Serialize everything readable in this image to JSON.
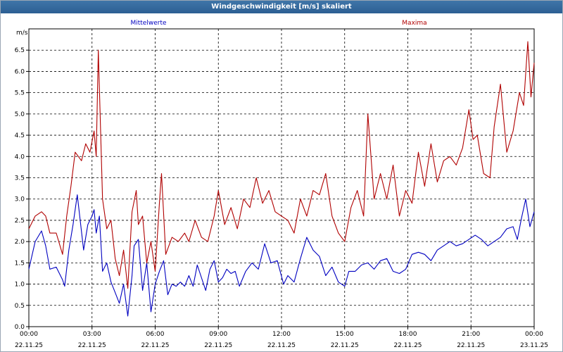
{
  "window": {
    "title": "Windgeschwindigkeit [m/s] skaliert"
  },
  "chart_data": {
    "type": "line",
    "title": "Windgeschwindigkeit [m/s] skaliert",
    "ylabel": "m/s",
    "ylim": [
      0,
      7
    ],
    "yticks": [
      0.0,
      0.5,
      1.0,
      1.5,
      2.0,
      2.5,
      3.0,
      3.5,
      4.0,
      4.5,
      5.0,
      5.5,
      6.0,
      6.5
    ],
    "ytick_labels": [
      "0.0",
      "0.5",
      "1.0",
      "1.5",
      "2.0",
      "2.5",
      "3.0",
      "3.5",
      "4.0",
      "4.5",
      "5.0",
      "5.5",
      "6.0",
      "6.5"
    ],
    "xlim_hours": [
      0,
      24
    ],
    "xticks_hours": [
      0,
      3,
      6,
      9,
      12,
      15,
      18,
      21,
      24
    ],
    "xtick_times": [
      "00:00",
      "03:00",
      "06:00",
      "09:00",
      "12:00",
      "15:00",
      "18:00",
      "21:00",
      "00:00"
    ],
    "xtick_dates": [
      "22.11.25",
      "22.11.25",
      "22.11.25",
      "22.11.25",
      "22.11.25",
      "22.11.25",
      "22.11.25",
      "22.11.25",
      "23.11.25"
    ],
    "grid": true,
    "series": [
      {
        "name": "Mittelwerte",
        "color": "#0000c0",
        "x_hours": [
          0.0,
          0.3,
          0.6,
          0.8,
          1.0,
          1.3,
          1.6,
          1.7,
          1.9,
          2.1,
          2.3,
          2.6,
          2.8,
          3.0,
          3.1,
          3.2,
          3.35,
          3.5,
          3.7,
          3.9,
          4.1,
          4.3,
          4.5,
          4.7,
          4.9,
          5.0,
          5.2,
          5.4,
          5.6,
          5.8,
          6.0,
          6.2,
          6.4,
          6.6,
          6.8,
          7.0,
          7.2,
          7.4,
          7.6,
          7.8,
          8.0,
          8.2,
          8.4,
          8.6,
          8.8,
          9.0,
          9.2,
          9.4,
          9.6,
          9.8,
          10.0,
          10.3,
          10.6,
          10.9,
          11.2,
          11.5,
          11.8,
          12.1,
          12.3,
          12.6,
          12.9,
          13.2,
          13.5,
          13.8,
          14.1,
          14.4,
          14.7,
          15.0,
          15.2,
          15.5,
          15.8,
          16.1,
          16.4,
          16.7,
          17.0,
          17.3,
          17.6,
          17.9,
          18.2,
          18.5,
          18.8,
          19.1,
          19.4,
          19.7,
          20.0,
          20.3,
          20.6,
          20.9,
          21.2,
          21.5,
          21.8,
          22.1,
          22.4,
          22.7,
          23.0,
          23.2,
          23.4,
          23.6,
          23.8,
          24.0
        ],
        "values": [
          1.35,
          2.0,
          2.25,
          1.9,
          1.35,
          1.4,
          1.1,
          0.95,
          1.8,
          2.4,
          3.1,
          1.8,
          2.4,
          2.6,
          2.75,
          2.2,
          2.6,
          1.3,
          1.5,
          1.05,
          0.8,
          0.55,
          1.0,
          0.25,
          1.2,
          1.9,
          2.05,
          0.85,
          1.5,
          0.35,
          1.0,
          1.3,
          1.55,
          0.75,
          1.0,
          0.95,
          1.05,
          0.95,
          1.2,
          0.95,
          1.45,
          1.15,
          0.85,
          1.35,
          1.55,
          1.05,
          1.15,
          1.35,
          1.25,
          1.3,
          0.95,
          1.3,
          1.5,
          1.35,
          1.95,
          1.5,
          1.55,
          1.0,
          1.2,
          1.05,
          1.6,
          2.1,
          1.8,
          1.65,
          1.2,
          1.4,
          1.05,
          0.95,
          1.3,
          1.3,
          1.45,
          1.5,
          1.35,
          1.55,
          1.6,
          1.3,
          1.25,
          1.35,
          1.7,
          1.75,
          1.7,
          1.55,
          1.8,
          1.9,
          2.0,
          1.9,
          1.95,
          2.05,
          2.15,
          2.05,
          1.9,
          2.0,
          2.1,
          2.3,
          2.35,
          2.05,
          2.55,
          3.0,
          2.35,
          2.7
        ]
      },
      {
        "name": "Maxima",
        "color": "#b00000",
        "x_hours": [
          0.0,
          0.3,
          0.6,
          0.8,
          1.0,
          1.3,
          1.6,
          1.8,
          2.0,
          2.2,
          2.5,
          2.7,
          2.9,
          3.1,
          3.2,
          3.3,
          3.5,
          3.7,
          3.9,
          4.1,
          4.3,
          4.5,
          4.7,
          4.9,
          5.1,
          5.2,
          5.4,
          5.6,
          5.8,
          6.0,
          6.2,
          6.3,
          6.5,
          6.8,
          7.1,
          7.4,
          7.6,
          7.9,
          8.2,
          8.5,
          8.8,
          9.0,
          9.3,
          9.6,
          9.9,
          10.2,
          10.5,
          10.8,
          11.1,
          11.4,
          11.7,
          12.0,
          12.3,
          12.6,
          12.9,
          13.2,
          13.5,
          13.8,
          14.1,
          14.4,
          14.7,
          15.0,
          15.3,
          15.6,
          15.9,
          16.1,
          16.4,
          16.7,
          17.0,
          17.3,
          17.6,
          17.9,
          18.2,
          18.5,
          18.8,
          19.1,
          19.4,
          19.7,
          20.0,
          20.3,
          20.6,
          20.9,
          21.1,
          21.3,
          21.6,
          21.9,
          22.1,
          22.4,
          22.7,
          23.0,
          23.3,
          23.5,
          23.7,
          23.85,
          24.0
        ],
        "values": [
          2.3,
          2.6,
          2.7,
          2.6,
          2.2,
          2.2,
          1.7,
          2.6,
          3.3,
          4.1,
          3.9,
          4.3,
          4.1,
          4.6,
          4.0,
          6.5,
          3.0,
          2.3,
          2.5,
          1.6,
          1.2,
          1.8,
          0.9,
          2.7,
          3.2,
          2.4,
          2.6,
          1.5,
          2.0,
          1.3,
          2.9,
          3.6,
          1.7,
          2.1,
          2.0,
          2.2,
          2.0,
          2.5,
          2.1,
          2.0,
          2.6,
          3.2,
          2.4,
          2.8,
          2.3,
          3.0,
          2.8,
          3.5,
          2.9,
          3.2,
          2.7,
          2.6,
          2.5,
          2.2,
          3.0,
          2.6,
          3.2,
          3.1,
          3.6,
          2.6,
          2.2,
          2.0,
          2.8,
          3.2,
          2.6,
          5.0,
          3.0,
          3.6,
          3.0,
          3.8,
          2.6,
          3.2,
          2.9,
          4.1,
          3.3,
          4.3,
          3.4,
          3.9,
          4.0,
          3.8,
          4.2,
          5.1,
          4.4,
          4.5,
          3.6,
          3.5,
          4.7,
          5.7,
          4.1,
          4.6,
          5.5,
          5.2,
          6.7,
          5.4,
          6.2
        ]
      }
    ]
  }
}
